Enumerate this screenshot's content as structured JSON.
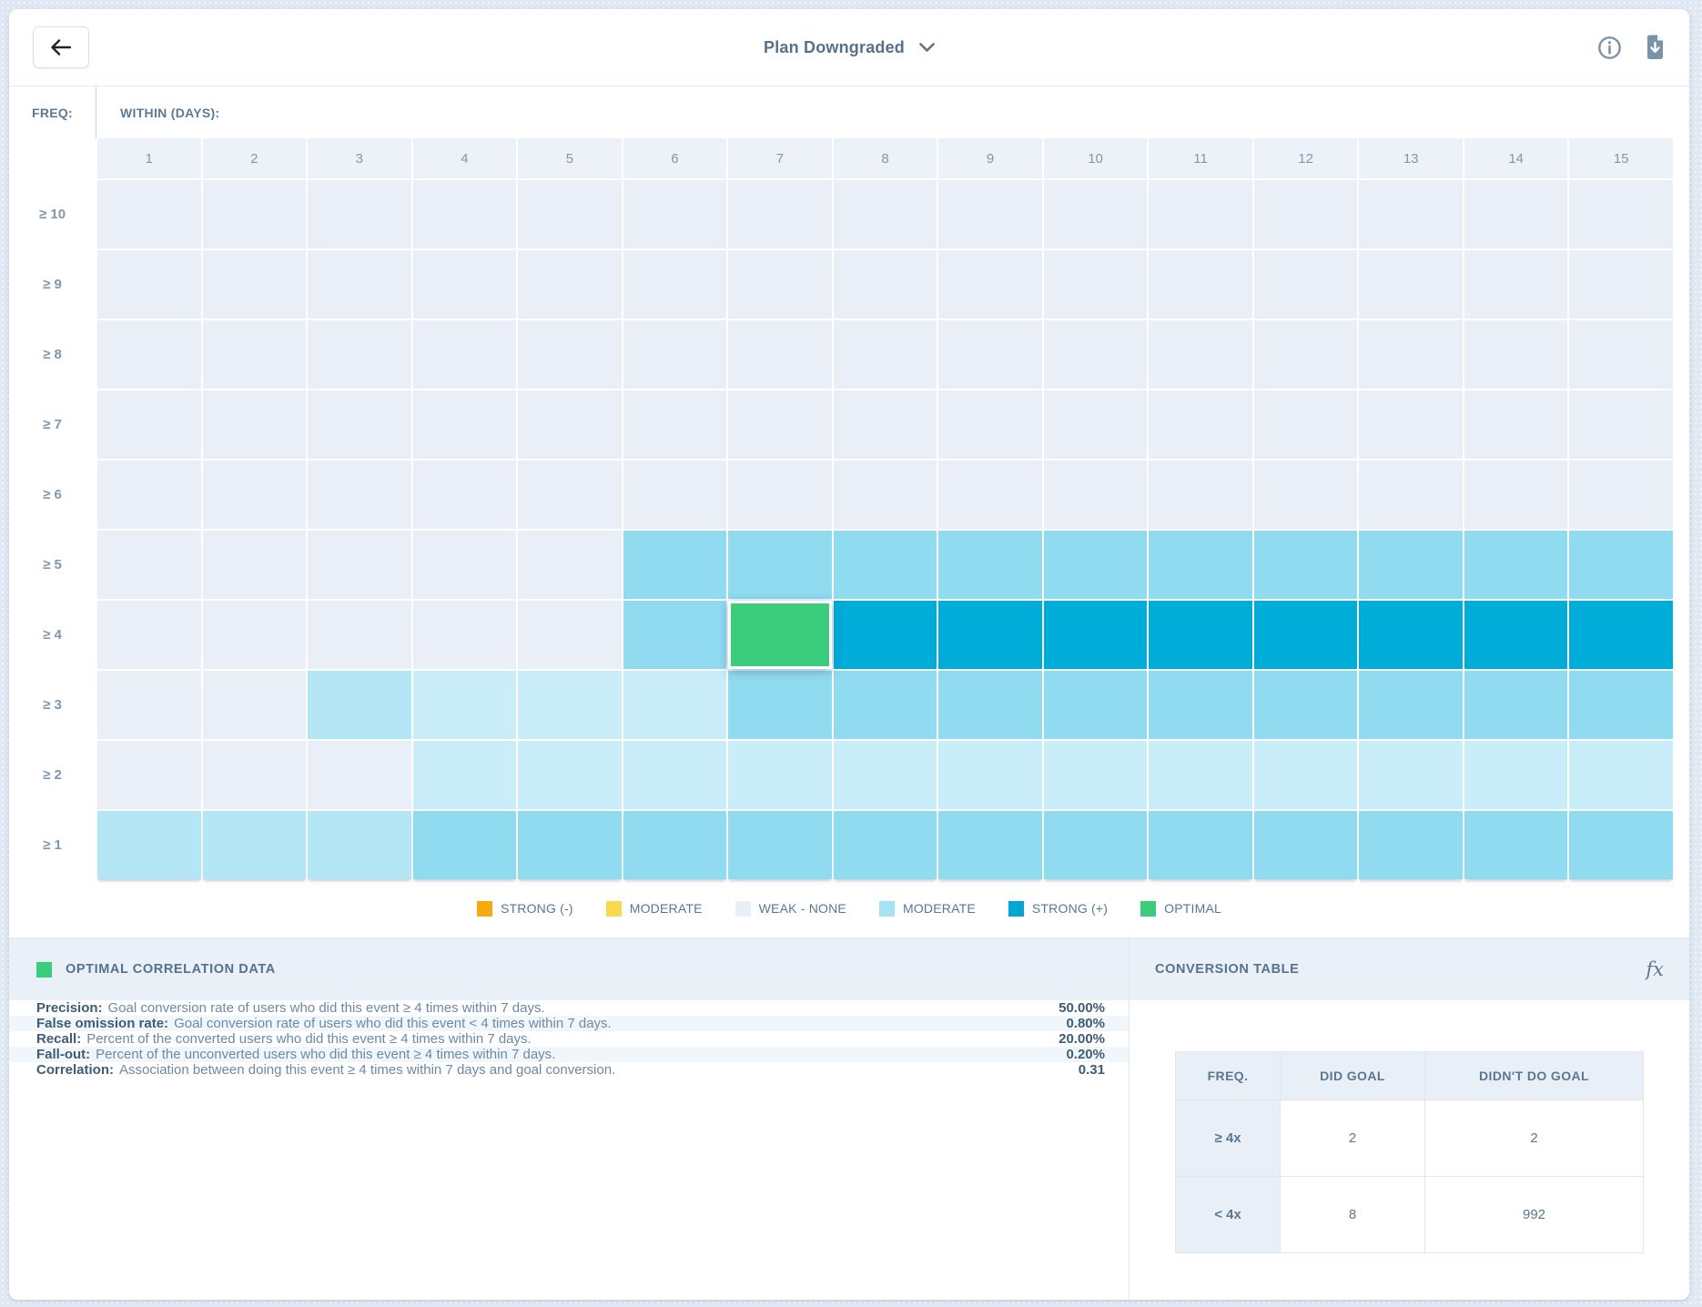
{
  "topbar": {
    "title": "Plan Downgraded"
  },
  "heatmap": {
    "freq_label": "FREQ:",
    "within_label": "WITHIN (DAYS):",
    "columns": [
      "1",
      "2",
      "3",
      "4",
      "5",
      "6",
      "7",
      "8",
      "9",
      "10",
      "11",
      "12",
      "13",
      "14",
      "15"
    ],
    "colors": {
      "w": "#e9eef7",
      "l1": "#c9edf9",
      "l2": "#b5e6f5",
      "m": "#90dbf0",
      "s": "#00acd8",
      "g": "#3bcd7b"
    },
    "rows": [
      {
        "label": "≥ 10",
        "cells": [
          "w",
          "w",
          "w",
          "w",
          "w",
          "w",
          "w",
          "w",
          "w",
          "w",
          "w",
          "w",
          "w",
          "w",
          "w"
        ]
      },
      {
        "label": "≥ 9",
        "cells": [
          "w",
          "w",
          "w",
          "w",
          "w",
          "w",
          "w",
          "w",
          "w",
          "w",
          "w",
          "w",
          "w",
          "w",
          "w"
        ]
      },
      {
        "label": "≥ 8",
        "cells": [
          "w",
          "w",
          "w",
          "w",
          "w",
          "w",
          "w",
          "w",
          "w",
          "w",
          "w",
          "w",
          "w",
          "w",
          "w"
        ]
      },
      {
        "label": "≥ 7",
        "cells": [
          "w",
          "w",
          "w",
          "w",
          "w",
          "w",
          "w",
          "w",
          "w",
          "w",
          "w",
          "w",
          "w",
          "w",
          "w"
        ]
      },
      {
        "label": "≥ 6",
        "cells": [
          "w",
          "w",
          "w",
          "w",
          "w",
          "w",
          "w",
          "w",
          "w",
          "w",
          "w",
          "w",
          "w",
          "w",
          "w"
        ]
      },
      {
        "label": "≥ 5",
        "cells": [
          "w",
          "w",
          "w",
          "w",
          "w",
          "m",
          "m",
          "m",
          "m",
          "m",
          "m",
          "m",
          "m",
          "m",
          "m"
        ]
      },
      {
        "label": "≥ 4",
        "cells": [
          "w",
          "w",
          "w",
          "w",
          "w",
          "m",
          "g",
          "s",
          "s",
          "s",
          "s",
          "s",
          "s",
          "s",
          "s"
        ]
      },
      {
        "label": "≥ 3",
        "cells": [
          "w",
          "w",
          "l2",
          "l1",
          "l1",
          "l1",
          "m",
          "m",
          "m",
          "m",
          "m",
          "m",
          "m",
          "m",
          "m"
        ]
      },
      {
        "label": "≥ 2",
        "cells": [
          "w",
          "w",
          "w",
          "l1",
          "l1",
          "l1",
          "l1",
          "l1",
          "l1",
          "l1",
          "l1",
          "l1",
          "l1",
          "l1",
          "l1"
        ]
      },
      {
        "label": "≥ 1",
        "cells": [
          "l2",
          "l2",
          "l2",
          "m",
          "m",
          "m",
          "m",
          "m",
          "m",
          "m",
          "m",
          "m",
          "m",
          "m",
          "m"
        ]
      }
    ]
  },
  "legend": [
    {
      "label": "STRONG (-)",
      "color": "#f3ac0c",
      "pattern": false
    },
    {
      "label": "MODERATE",
      "color": "#f8da4a",
      "pattern": false
    },
    {
      "label": "WEAK - NONE",
      "color": "#e9eef7",
      "pattern": false
    },
    {
      "label": "MODERATE",
      "color": "#a5e2f4",
      "pattern": true
    },
    {
      "label": "STRONG (+)",
      "color": "#00a7d2",
      "pattern": false
    },
    {
      "label": "OPTIMAL",
      "color": "#3bcd7b",
      "pattern": false
    }
  ],
  "optimal_panel": {
    "title": "OPTIMAL CORRELATION DATA",
    "swatch_color": "#3bcd7b",
    "metrics": [
      {
        "name": "Precision:",
        "description": "Goal conversion rate of users who did this event ≥ 4 times within 7 days.",
        "value": "50.00%"
      },
      {
        "name": "False omission rate:",
        "description": "Goal conversion rate of users who did this event < 4 times within 7 days.",
        "value": "0.80%"
      },
      {
        "name": "Recall:",
        "description": "Percent of the converted users who did this event ≥ 4 times within 7 days.",
        "value": "20.00%"
      },
      {
        "name": "Fall-out:",
        "description": "Percent of the unconverted users who did this event ≥ 4 times within 7 days.",
        "value": "0.20%"
      },
      {
        "name": "Correlation:",
        "description": "Association between doing this event ≥ 4 times within 7 days and goal conversion.",
        "value": "0.31"
      }
    ]
  },
  "conversion_panel": {
    "title": "CONVERSION TABLE",
    "fx_label": "fx",
    "table": {
      "headers": [
        "FREQ.",
        "DID GOAL",
        "DIDN'T DO GOAL"
      ],
      "rows": [
        {
          "freq": "≥ 4x",
          "did": "2",
          "didnt": "2"
        },
        {
          "freq": "< 4x",
          "did": "8",
          "didnt": "992"
        }
      ]
    }
  }
}
